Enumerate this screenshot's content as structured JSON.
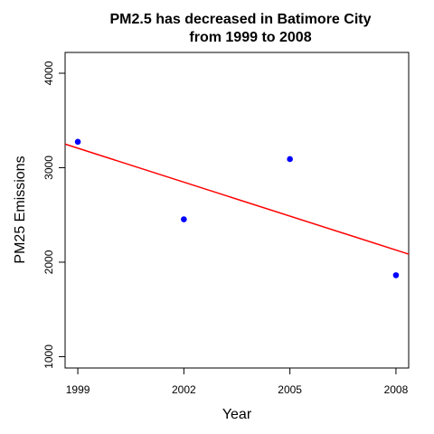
{
  "chart_data": {
    "type": "scatter",
    "title_lines": [
      "PM2.5  has decreased in Batimore City",
      "from 1999 to 2008"
    ],
    "xlabel": "Year",
    "ylabel": "PM25 Emissions",
    "x_ticks": [
      1999,
      2002,
      2005,
      2008
    ],
    "y_ticks": [
      1000,
      2000,
      3000,
      4000
    ],
    "xlim": [
      1998.64,
      2008.36
    ],
    "ylim": [
      880,
      4220
    ],
    "points": [
      {
        "x": 1999,
        "y": 3274
      },
      {
        "x": 2002,
        "y": 2454
      },
      {
        "x": 2005,
        "y": 3091
      },
      {
        "x": 2008,
        "y": 1862
      }
    ],
    "trend_line": {
      "x": [
        1998.64,
        2008.36
      ],
      "y": [
        3250,
        2085
      ]
    },
    "point_color": "#0000ff",
    "line_color": "#ff0000",
    "grid": false
  }
}
